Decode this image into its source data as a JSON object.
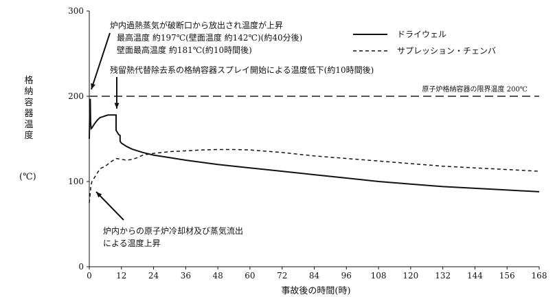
{
  "chart_data": {
    "type": "line",
    "title": "",
    "xlabel": "事故後の時間(時)",
    "ylabel": "格納容器温度",
    "yunit": "(℃)",
    "xlim": [
      0,
      168
    ],
    "ylim": [
      0,
      300
    ],
    "x_ticks": [
      0,
      12,
      24,
      36,
      48,
      60,
      72,
      84,
      96,
      108,
      120,
      132,
      144,
      156,
      168
    ],
    "y_ticks": [
      0,
      100,
      200,
      300
    ],
    "grid": false,
    "legend_position": "top-right",
    "series": [
      {
        "name": "ドライウェル",
        "style": "solid",
        "points": [
          [
            0,
            150
          ],
          [
            0.2,
            190
          ],
          [
            0.35,
            197
          ],
          [
            0.5,
            170
          ],
          [
            0.7,
            162
          ],
          [
            1,
            163
          ],
          [
            2,
            168
          ],
          [
            3,
            172
          ],
          [
            4,
            175
          ],
          [
            5,
            176
          ],
          [
            6,
            177
          ],
          [
            7,
            178
          ],
          [
            8,
            178
          ],
          [
            9,
            178
          ],
          [
            10,
            178
          ],
          [
            10.01,
            160
          ],
          [
            11,
            155
          ],
          [
            11.5,
            154
          ],
          [
            11.51,
            147
          ],
          [
            12,
            145
          ],
          [
            14,
            141
          ],
          [
            16,
            138
          ],
          [
            18,
            136
          ],
          [
            20,
            134
          ],
          [
            24,
            131
          ],
          [
            30,
            128
          ],
          [
            36,
            125
          ],
          [
            48,
            120
          ],
          [
            60,
            116
          ],
          [
            72,
            112
          ],
          [
            84,
            108
          ],
          [
            96,
            104
          ],
          [
            108,
            100
          ],
          [
            120,
            97
          ],
          [
            132,
            94
          ],
          [
            144,
            92
          ],
          [
            156,
            90
          ],
          [
            168,
            88
          ]
        ]
      },
      {
        "name": "サプレッション・チェンバ",
        "style": "dashed",
        "points": [
          [
            0,
            75
          ],
          [
            0.3,
            85
          ],
          [
            0.6,
            95
          ],
          [
            1,
            100
          ],
          [
            2,
            105
          ],
          [
            3,
            110
          ],
          [
            4,
            115
          ],
          [
            6,
            118
          ],
          [
            8,
            123
          ],
          [
            10,
            127
          ],
          [
            12,
            126
          ],
          [
            14,
            125
          ],
          [
            16,
            126
          ],
          [
            18,
            128
          ],
          [
            20,
            131
          ],
          [
            24,
            133
          ],
          [
            30,
            135
          ],
          [
            36,
            136
          ],
          [
            42,
            137
          ],
          [
            48,
            137.5
          ],
          [
            54,
            137.5
          ],
          [
            60,
            137
          ],
          [
            72,
            134
          ],
          [
            84,
            130
          ],
          [
            96,
            127
          ],
          [
            108,
            124
          ],
          [
            120,
            121
          ],
          [
            132,
            118
          ],
          [
            144,
            116
          ],
          [
            156,
            114
          ],
          [
            168,
            112
          ]
        ]
      }
    ],
    "reference_line": {
      "label": "原子炉格納容器の限界温度 200℃",
      "y": 200
    },
    "annotations": {
      "note1": [
        "炉内過熱蒸気が破断口から放出され温度が上昇",
        "最高温度 約197℃(壁面温度 約142℃)(約40分後)",
        "壁面最高温度 約181℃(約10時間後)"
      ],
      "note2": "残留熱代替除去系の格納容器スプレイ開始による温度低下(約10時間後)",
      "note3": [
        "炉内からの原子炉冷却材及び蒸気流出",
        "による温度上昇"
      ]
    },
    "colors": {
      "line": "#111111",
      "reference": "#555555"
    }
  }
}
